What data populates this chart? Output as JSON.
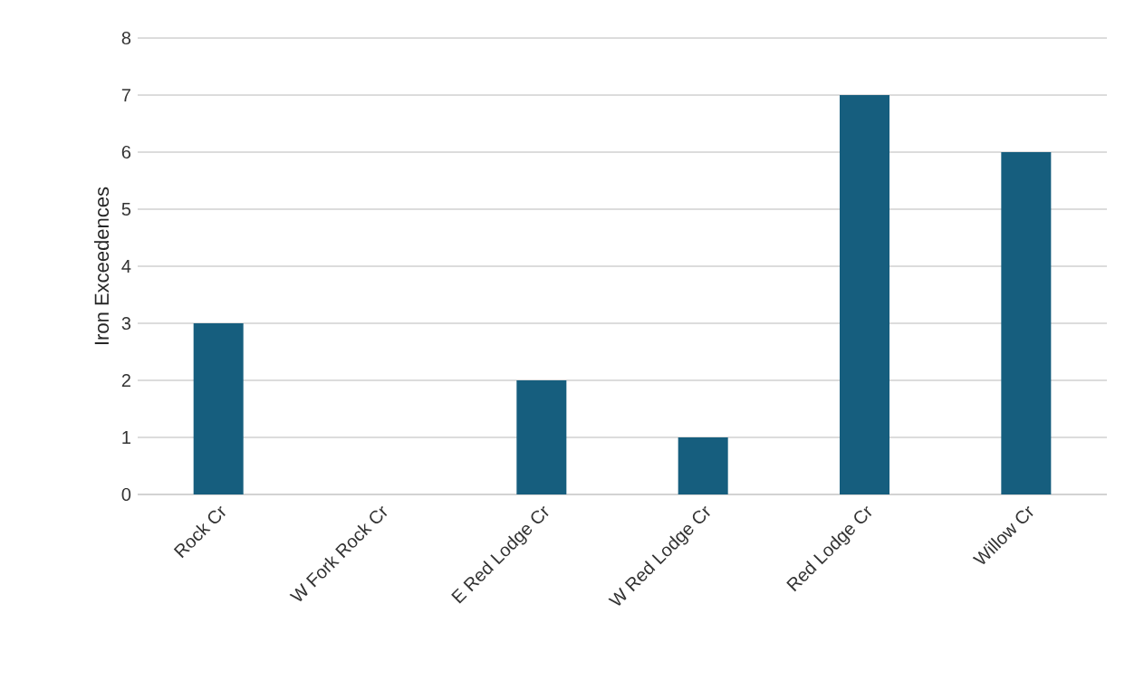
{
  "chart_data": {
    "type": "bar",
    "ylabel": "Iron Exceedences",
    "categories": [
      "Rock Cr",
      "W Fork Rock Cr",
      "E Red Lodge Cr",
      "W Red Lodge Cr",
      "Red Lodge Cr",
      "Willow Cr"
    ],
    "values": [
      3,
      0,
      2,
      1,
      7,
      6
    ],
    "color": "#165e7e",
    "ylim": [
      0,
      8
    ],
    "yticks": [
      0,
      1,
      2,
      3,
      4,
      5,
      6,
      7,
      8
    ],
    "grid": "y"
  }
}
